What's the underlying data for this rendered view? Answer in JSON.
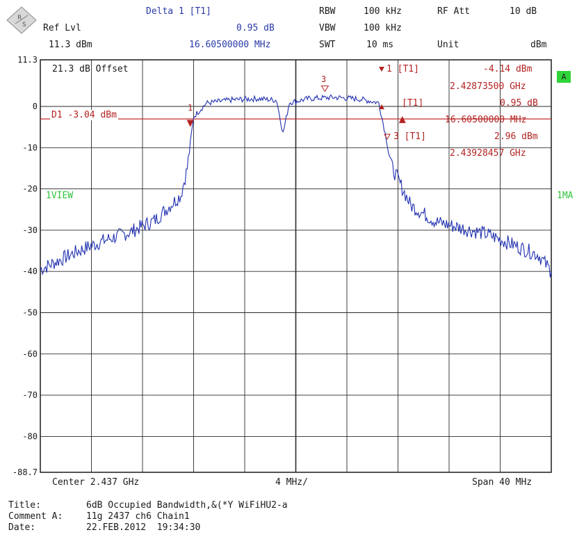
{
  "header": {
    "ref_lvl_label": "Ref Lvl",
    "ref_lvl_value": "11.3 dBm",
    "delta_label": "Delta 1 [T1]",
    "delta_value": "0.95 dB",
    "delta_freq": "16.60500000 MHz",
    "rbw_label": "RBW",
    "rbw_value": "100 kHz",
    "vbw_label": "VBW",
    "vbw_value": "100 kHz",
    "swt_label": "SWT",
    "swt_value": "10 ms",
    "rf_att_label": "RF Att",
    "rf_att_value": "10 dB",
    "unit_label": "Unit",
    "unit_value": "dBm"
  },
  "markers": {
    "m1_label": "1 [T1]",
    "m1_level": "-4.14 dBm",
    "m1_freq": "2.42873500 GHz",
    "d2_label": "[T1]",
    "d2_level": "0.95 dB",
    "d2_freq": "16.60500000 MHz",
    "m3_label": "3 [T1]",
    "m3_level": "2.96 dBm",
    "m3_freq": "2.43928457 GHz",
    "m1_tag": "1",
    "m2_tag": "2",
    "m3_tag": "3"
  },
  "overlay": {
    "offset_text": "21.3 dB Offset",
    "d1_line_text": "D1 -3.04 dBm",
    "view_left": "1VIEW",
    "view_right": "1MA",
    "badge": "A"
  },
  "footer": {
    "center": "Center 2.437 GHz",
    "div": "4 MHz/",
    "span": "Span 40 MHz",
    "title_label": "Title:",
    "title_value": "6dB Occupied Bandwidth,&(*Y WiFiHU2-a",
    "comment_label": "Comment A:",
    "comment_value": "11g 2437 ch6 Chain1",
    "date_label": "Date:",
    "date_value": "22.FEB.2012  19:34:30"
  },
  "chart_data": {
    "type": "line",
    "xlabel": "",
    "ylabel": "",
    "xlim": [
      2.417,
      2.457
    ],
    "ylim": [
      -88.7,
      11.3
    ],
    "y_ticks": [
      11.3,
      0,
      -10,
      -20,
      -30,
      -40,
      -50,
      -60,
      -70,
      -80,
      -88.7
    ],
    "y_tick_labels": [
      "11.3",
      "0",
      "-10",
      "-20",
      "-30",
      "-40",
      "-50",
      "-60",
      "-70",
      "-80",
      "-88.7"
    ],
    "grid": true,
    "reference_line": -3.04,
    "series": [
      {
        "color": "#2030b0",
        "x": [
          2.417,
          2.418,
          2.42,
          2.422,
          2.424,
          2.426,
          2.428,
          2.4285,
          2.429,
          2.43,
          2.432,
          2.434,
          2.4355,
          2.436,
          2.4365,
          2.437,
          2.438,
          2.44,
          2.442,
          2.4435,
          2.444,
          2.4445,
          2.446,
          2.448,
          2.45,
          2.452,
          2.454,
          2.456,
          2.457
        ],
        "y": [
          -39.5,
          -38,
          -35,
          -32.5,
          -30.5,
          -27.5,
          -21.5,
          -15,
          -2.5,
          0.8,
          1.6,
          1.9,
          1.5,
          -6.5,
          1.0,
          1.2,
          1.9,
          2.2,
          1.8,
          0.9,
          -6.5,
          -14.5,
          -24,
          -28,
          -29.5,
          -31,
          -33.5,
          -36,
          -40
        ]
      }
    ],
    "markers": [
      {
        "name": "1",
        "x": 2.428735,
        "y": -4.14
      },
      {
        "name": "2",
        "x": 2.44534,
        "y": -3.19
      },
      {
        "name": "3",
        "x": 2.43928,
        "y": 2.96
      }
    ]
  }
}
